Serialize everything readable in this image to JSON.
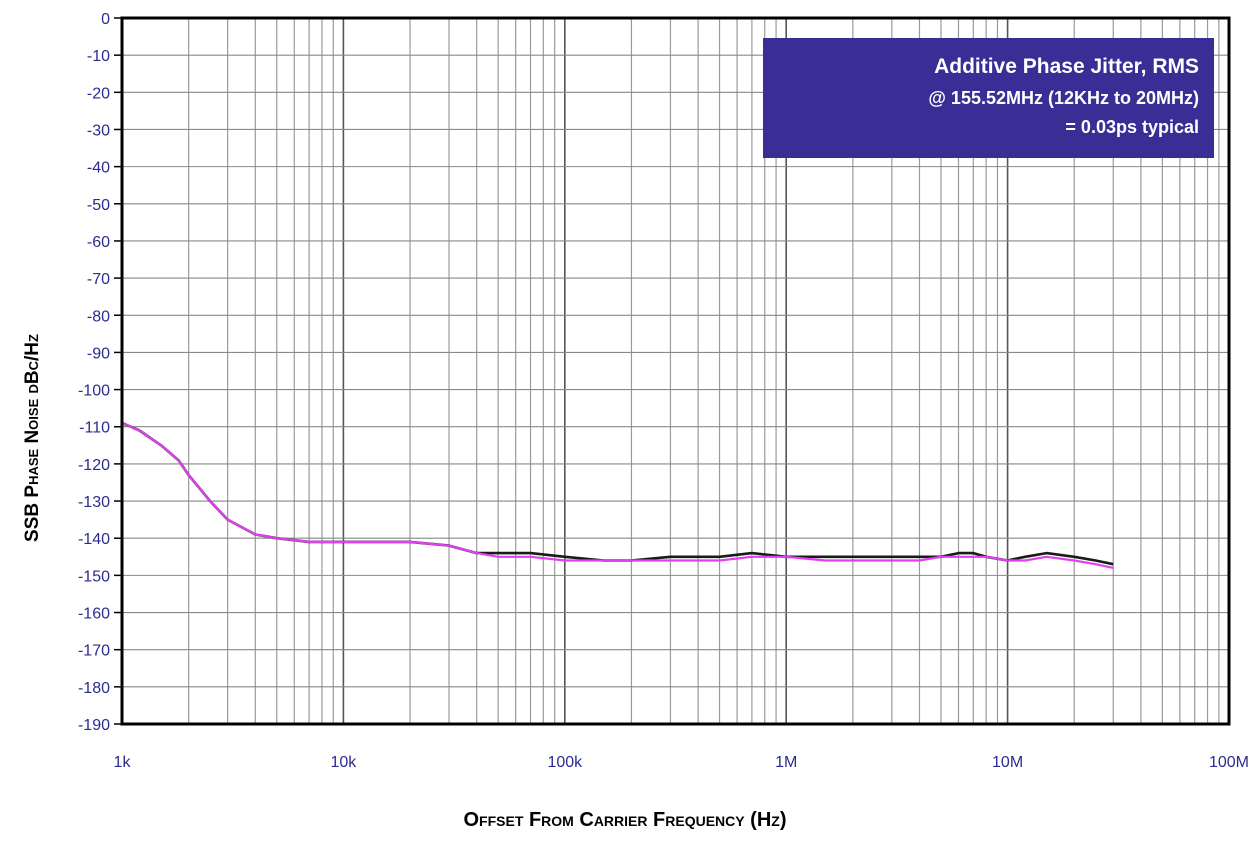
{
  "chart_data": {
    "type": "line",
    "title": "",
    "xlabel": "Offset From Carrier Frequency (Hz)",
    "ylabel": "SSB Phase Noise dBc/Hz",
    "xscale": "log",
    "xlim": [
      1000,
      100000000
    ],
    "ylim": [
      -190,
      0
    ],
    "x_ticks": [
      {
        "value": 1000,
        "label": "1k"
      },
      {
        "value": 10000,
        "label": "10k"
      },
      {
        "value": 100000,
        "label": "100k"
      },
      {
        "value": 1000000,
        "label": "1M"
      },
      {
        "value": 10000000,
        "label": "10M"
      },
      {
        "value": 100000000,
        "label": "100M"
      }
    ],
    "y_ticks": [
      0,
      -10,
      -20,
      -30,
      -40,
      -50,
      -60,
      -70,
      -80,
      -90,
      -100,
      -110,
      -120,
      -130,
      -140,
      -150,
      -160,
      -170,
      -180,
      -190
    ],
    "grid": true,
    "legend": "none",
    "annotation": {
      "lines": [
        "Additive Phase Jitter, RMS",
        "@ 155.52MHz (12KHz to 20MHz)",
        "= 0.03ps typical"
      ],
      "placement": "top-right",
      "background": "#3b2d96",
      "text_color": "#ffffff"
    },
    "series": [
      {
        "color": "#1a1a1a",
        "x": [
          1000,
          1200,
          1500,
          1800,
          2000,
          2500,
          3000,
          4000,
          5000,
          7000,
          10000,
          15000,
          20000,
          30000,
          40000,
          50000,
          70000,
          100000,
          150000,
          200000,
          300000,
          500000,
          700000,
          1000000,
          1500000,
          2000000,
          3000000,
          4000000,
          5000000,
          6000000,
          7000000,
          8000000,
          10000000,
          12000000,
          15000000,
          20000000,
          25000000,
          30000000
        ],
        "y": [
          -109,
          -111,
          -115,
          -119,
          -123,
          -130,
          -135,
          -139,
          -140,
          -141,
          -141,
          -141,
          -141,
          -142,
          -144,
          -144,
          -144,
          -145,
          -146,
          -146,
          -145,
          -145,
          -144,
          -145,
          -145,
          -145,
          -145,
          -145,
          -145,
          -144,
          -144,
          -145,
          -146,
          -145,
          -144,
          -145,
          -146,
          -147
        ]
      },
      {
        "color": "#e040f0",
        "x": [
          1000,
          1200,
          1500,
          1800,
          2000,
          2500,
          3000,
          4000,
          5000,
          7000,
          10000,
          15000,
          20000,
          30000,
          40000,
          50000,
          70000,
          100000,
          150000,
          200000,
          300000,
          500000,
          700000,
          1000000,
          1500000,
          2000000,
          3000000,
          4000000,
          5000000,
          6000000,
          7000000,
          8000000,
          10000000,
          12000000,
          15000000,
          20000000,
          25000000,
          30000000
        ],
        "y": [
          -109,
          -111,
          -115,
          -119,
          -123,
          -130,
          -135,
          -139,
          -140,
          -141,
          -141,
          -141,
          -141,
          -142,
          -144,
          -145,
          -145,
          -146,
          -146,
          -146,
          -146,
          -146,
          -145,
          -145,
          -146,
          -146,
          -146,
          -146,
          -145,
          -145,
          -145,
          -145,
          -146,
          -146,
          -145,
          -146,
          -147,
          -148
        ]
      }
    ]
  }
}
